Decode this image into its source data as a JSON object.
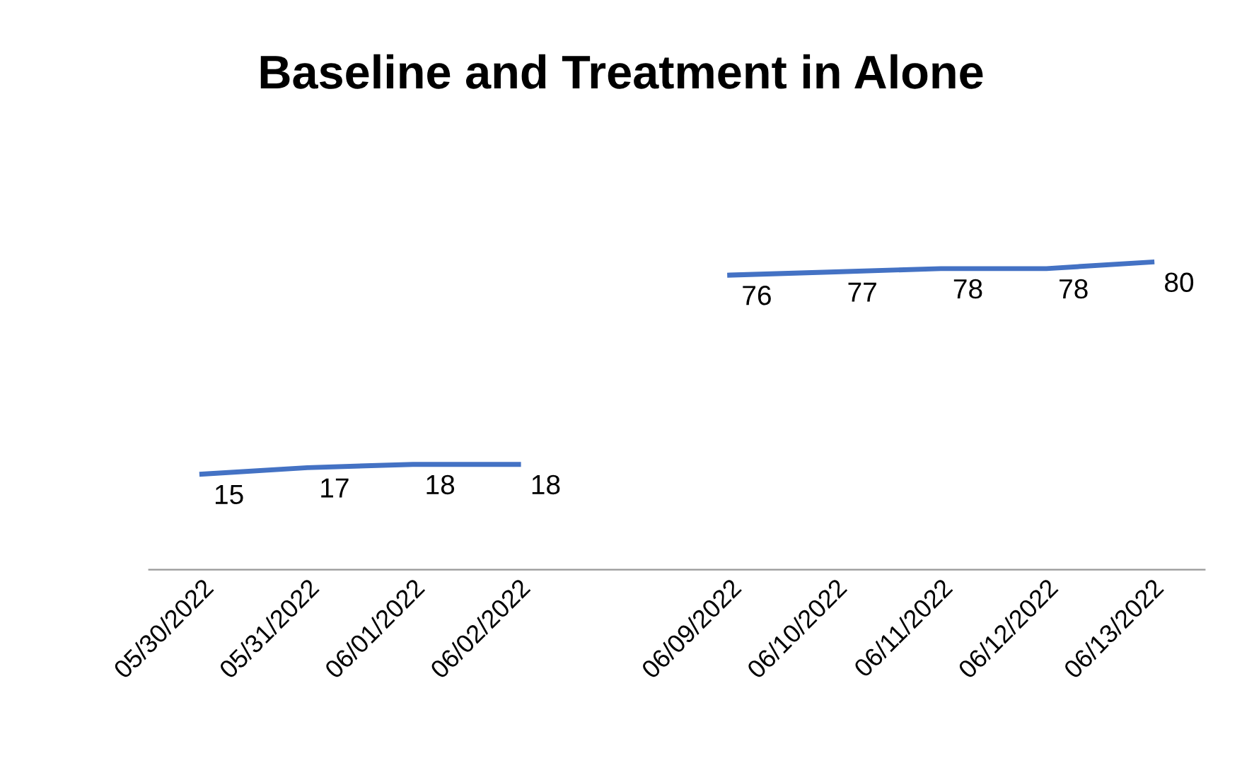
{
  "chart_data": {
    "type": "line",
    "title": "Baseline and Treatment in Alone",
    "categories": [
      "05/30/2022",
      "05/31/2022",
      "06/01/2022",
      "06/02/2022",
      null,
      "06/09/2022",
      "06/10/2022",
      "06/11/2022",
      "06/12/2022",
      "06/13/2022"
    ],
    "series": [
      {
        "color": "#4472c4",
        "values": [
          15,
          17,
          18,
          18,
          null,
          76,
          77,
          78,
          78,
          80
        ]
      }
    ],
    "data_labels": true,
    "grid": false,
    "legend": false,
    "marker": "none",
    "line_style": "solid"
  }
}
